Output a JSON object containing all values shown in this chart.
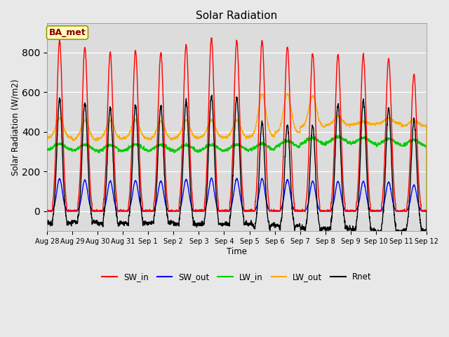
{
  "title": "Solar Radiation",
  "xlabel": "Time",
  "ylabel": "Solar Radiation (W/m2)",
  "ylim": [
    -100,
    950
  ],
  "annotation": "BA_met",
  "bg_color": "#e8e8e8",
  "plot_bg": "#dcdcdc",
  "series": {
    "SW_in": {
      "color": "#ff0000",
      "lw": 1.0
    },
    "SW_out": {
      "color": "#0000ff",
      "lw": 1.0
    },
    "LW_in": {
      "color": "#00cc00",
      "lw": 1.0
    },
    "LW_out": {
      "color": "#ffaa00",
      "lw": 1.0
    },
    "Rnet": {
      "color": "#000000",
      "lw": 1.0
    }
  },
  "num_days": 15,
  "tick_labels": [
    "Aug 28",
    "Aug 29",
    "Aug 30",
    "Aug 31",
    "Sep 1",
    "Sep 2",
    "Sep 3",
    "Sep 4",
    "Sep 5",
    "Sep 6",
    "Sep 7",
    "Sep 8",
    "Sep 9",
    "Sep 10",
    "Sep 11",
    "Sep 12"
  ]
}
